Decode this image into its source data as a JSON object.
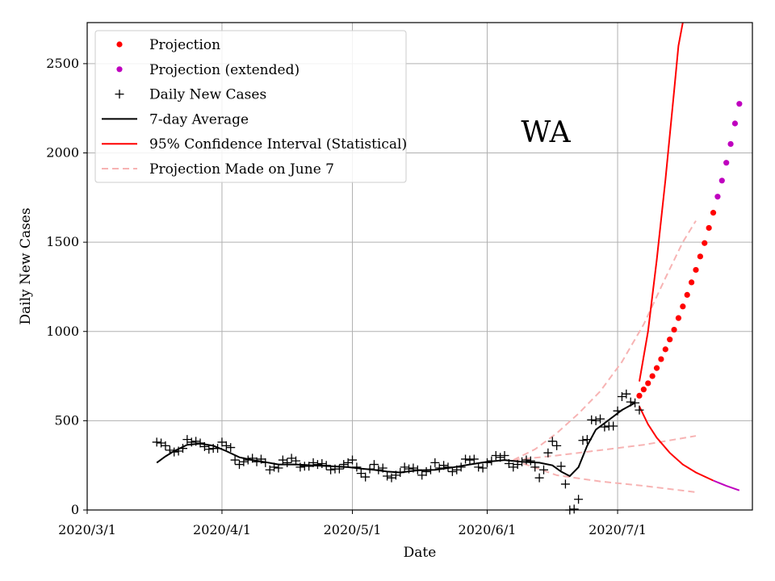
{
  "chart_data": {
    "type": "line",
    "xlabel": "Date",
    "ylabel": "Daily New Cases",
    "x_tick_labels": [
      "2020/3/1",
      "2020/4/1",
      "2020/5/1",
      "2020/6/1",
      "2020/7/1"
    ],
    "y_ticks": [
      0,
      500,
      1000,
      1500,
      2000,
      2500
    ],
    "xlim": [
      "2020-03-01",
      "2020-08-01"
    ],
    "ylim": [
      0,
      2730
    ],
    "grid": true,
    "legend_position": "top-left",
    "annotation": "WA",
    "colors": {
      "projection": "#ff0000",
      "projection_extended": "#bf00bf",
      "daily": "#000000",
      "avg": "#000000",
      "ci": "#ff0000",
      "ci_extended": "#bf00bf",
      "june7": "#f7b3b3",
      "grid": "#b0b0b0"
    },
    "legend": [
      {
        "label": "Projection",
        "marker": "dot",
        "color": "#ff0000"
      },
      {
        "label": "Projection (extended)",
        "marker": "dot",
        "color": "#bf00bf"
      },
      {
        "label": "Daily New Cases",
        "marker": "plus",
        "color": "#000000"
      },
      {
        "label": "7-day Average",
        "marker": "line",
        "color": "#000000"
      },
      {
        "label": "95% Confidence Interval (Statistical)",
        "marker": "line",
        "color": "#ff0000"
      },
      {
        "label": "Projection Made on June 7",
        "marker": "dashed",
        "color": "#f7b3b3"
      }
    ],
    "daily_new_cases": [
      {
        "date": "2020-03-17",
        "value": 380
      },
      {
        "date": "2020-03-18",
        "value": 375
      },
      {
        "date": "2020-03-19",
        "value": 360
      },
      {
        "date": "2020-03-20",
        "value": 335
      },
      {
        "date": "2020-03-21",
        "value": 325
      },
      {
        "date": "2020-03-22",
        "value": 330
      },
      {
        "date": "2020-03-23",
        "value": 345
      },
      {
        "date": "2020-03-24",
        "value": 395
      },
      {
        "date": "2020-03-25",
        "value": 380
      },
      {
        "date": "2020-03-26",
        "value": 385
      },
      {
        "date": "2020-03-27",
        "value": 375
      },
      {
        "date": "2020-03-28",
        "value": 355
      },
      {
        "date": "2020-03-29",
        "value": 340
      },
      {
        "date": "2020-03-30",
        "value": 345
      },
      {
        "date": "2020-03-31",
        "value": 345
      },
      {
        "date": "2020-04-01",
        "value": 380
      },
      {
        "date": "2020-04-02",
        "value": 360
      },
      {
        "date": "2020-04-03",
        "value": 350
      },
      {
        "date": "2020-04-04",
        "value": 280
      },
      {
        "date": "2020-04-05",
        "value": 255
      },
      {
        "date": "2020-04-06",
        "value": 270
      },
      {
        "date": "2020-04-07",
        "value": 280
      },
      {
        "date": "2020-04-08",
        "value": 290
      },
      {
        "date": "2020-04-09",
        "value": 270
      },
      {
        "date": "2020-04-10",
        "value": 285
      },
      {
        "date": "2020-04-11",
        "value": 265
      },
      {
        "date": "2020-04-12",
        "value": 225
      },
      {
        "date": "2020-04-13",
        "value": 240
      },
      {
        "date": "2020-04-14",
        "value": 235
      },
      {
        "date": "2020-04-15",
        "value": 280
      },
      {
        "date": "2020-04-16",
        "value": 265
      },
      {
        "date": "2020-04-17",
        "value": 290
      },
      {
        "date": "2020-04-18",
        "value": 275
      },
      {
        "date": "2020-04-19",
        "value": 240
      },
      {
        "date": "2020-04-20",
        "value": 245
      },
      {
        "date": "2020-04-21",
        "value": 245
      },
      {
        "date": "2020-04-22",
        "value": 265
      },
      {
        "date": "2020-04-23",
        "value": 255
      },
      {
        "date": "2020-04-24",
        "value": 260
      },
      {
        "date": "2020-04-25",
        "value": 250
      },
      {
        "date": "2020-04-26",
        "value": 225
      },
      {
        "date": "2020-04-27",
        "value": 230
      },
      {
        "date": "2020-04-28",
        "value": 230
      },
      {
        "date": "2020-04-29",
        "value": 255
      },
      {
        "date": "2020-04-30",
        "value": 265
      },
      {
        "date": "2020-05-01",
        "value": 280
      },
      {
        "date": "2020-05-02",
        "value": 240
      },
      {
        "date": "2020-05-03",
        "value": 205
      },
      {
        "date": "2020-05-04",
        "value": 185
      },
      {
        "date": "2020-05-05",
        "value": 230
      },
      {
        "date": "2020-05-06",
        "value": 255
      },
      {
        "date": "2020-05-07",
        "value": 225
      },
      {
        "date": "2020-05-08",
        "value": 235
      },
      {
        "date": "2020-05-09",
        "value": 190
      },
      {
        "date": "2020-05-10",
        "value": 180
      },
      {
        "date": "2020-05-11",
        "value": 195
      },
      {
        "date": "2020-05-12",
        "value": 210
      },
      {
        "date": "2020-05-13",
        "value": 240
      },
      {
        "date": "2020-05-14",
        "value": 230
      },
      {
        "date": "2020-05-15",
        "value": 235
      },
      {
        "date": "2020-05-16",
        "value": 225
      },
      {
        "date": "2020-05-17",
        "value": 195
      },
      {
        "date": "2020-05-18",
        "value": 215
      },
      {
        "date": "2020-05-19",
        "value": 225
      },
      {
        "date": "2020-05-20",
        "value": 265
      },
      {
        "date": "2020-05-21",
        "value": 235
      },
      {
        "date": "2020-05-22",
        "value": 250
      },
      {
        "date": "2020-05-23",
        "value": 240
      },
      {
        "date": "2020-05-24",
        "value": 215
      },
      {
        "date": "2020-05-25",
        "value": 225
      },
      {
        "date": "2020-05-26",
        "value": 240
      },
      {
        "date": "2020-05-27",
        "value": 285
      },
      {
        "date": "2020-05-28",
        "value": 280
      },
      {
        "date": "2020-05-29",
        "value": 285
      },
      {
        "date": "2020-05-30",
        "value": 240
      },
      {
        "date": "2020-05-31",
        "value": 235
      },
      {
        "date": "2020-06-01",
        "value": 265
      },
      {
        "date": "2020-06-02",
        "value": 275
      },
      {
        "date": "2020-06-03",
        "value": 305
      },
      {
        "date": "2020-06-04",
        "value": 295
      },
      {
        "date": "2020-06-05",
        "value": 305
      },
      {
        "date": "2020-06-06",
        "value": 260
      },
      {
        "date": "2020-06-07",
        "value": 240
      },
      {
        "date": "2020-06-08",
        "value": 255
      },
      {
        "date": "2020-06-09",
        "value": 270
      },
      {
        "date": "2020-06-10",
        "value": 280
      },
      {
        "date": "2020-06-11",
        "value": 275
      },
      {
        "date": "2020-06-12",
        "value": 240
      },
      {
        "date": "2020-06-13",
        "value": 180
      },
      {
        "date": "2020-06-14",
        "value": 225
      },
      {
        "date": "2020-06-15",
        "value": 320
      },
      {
        "date": "2020-06-16",
        "value": 385
      },
      {
        "date": "2020-06-17",
        "value": 360
      },
      {
        "date": "2020-06-18",
        "value": 245
      },
      {
        "date": "2020-06-19",
        "value": 145
      },
      {
        "date": "2020-06-20",
        "value": 0
      },
      {
        "date": "2020-06-21",
        "value": 5
      },
      {
        "date": "2020-06-22",
        "value": 60
      },
      {
        "date": "2020-06-23",
        "value": 390
      },
      {
        "date": "2020-06-24",
        "value": 395
      },
      {
        "date": "2020-06-25",
        "value": 505
      },
      {
        "date": "2020-06-26",
        "value": 500
      },
      {
        "date": "2020-06-27",
        "value": 510
      },
      {
        "date": "2020-06-28",
        "value": 465
      },
      {
        "date": "2020-06-29",
        "value": 470
      },
      {
        "date": "2020-06-30",
        "value": 470
      },
      {
        "date": "2020-07-01",
        "value": 555
      },
      {
        "date": "2020-07-02",
        "value": 635
      },
      {
        "date": "2020-07-03",
        "value": 650
      },
      {
        "date": "2020-07-04",
        "value": 605
      },
      {
        "date": "2020-07-05",
        "value": 600
      },
      {
        "date": "2020-07-06",
        "value": 560
      }
    ],
    "seven_day_average": [
      {
        "date": "2020-03-17",
        "value": 265
      },
      {
        "date": "2020-03-19",
        "value": 300
      },
      {
        "date": "2020-03-21",
        "value": 330
      },
      {
        "date": "2020-03-24",
        "value": 365
      },
      {
        "date": "2020-03-27",
        "value": 372
      },
      {
        "date": "2020-03-30",
        "value": 360
      },
      {
        "date": "2020-04-02",
        "value": 330
      },
      {
        "date": "2020-04-05",
        "value": 295
      },
      {
        "date": "2020-04-08",
        "value": 280
      },
      {
        "date": "2020-04-11",
        "value": 268
      },
      {
        "date": "2020-04-14",
        "value": 255
      },
      {
        "date": "2020-04-18",
        "value": 255
      },
      {
        "date": "2020-04-22",
        "value": 250
      },
      {
        "date": "2020-04-26",
        "value": 245
      },
      {
        "date": "2020-04-30",
        "value": 240
      },
      {
        "date": "2020-05-03",
        "value": 232
      },
      {
        "date": "2020-05-06",
        "value": 225
      },
      {
        "date": "2020-05-09",
        "value": 215
      },
      {
        "date": "2020-05-12",
        "value": 210
      },
      {
        "date": "2020-05-16",
        "value": 222
      },
      {
        "date": "2020-05-20",
        "value": 225
      },
      {
        "date": "2020-05-24",
        "value": 238
      },
      {
        "date": "2020-05-28",
        "value": 255
      },
      {
        "date": "2020-06-01",
        "value": 270
      },
      {
        "date": "2020-06-05",
        "value": 280
      },
      {
        "date": "2020-06-09",
        "value": 270
      },
      {
        "date": "2020-06-13",
        "value": 265
      },
      {
        "date": "2020-06-16",
        "value": 250
      },
      {
        "date": "2020-06-18",
        "value": 215
      },
      {
        "date": "2020-06-20",
        "value": 190
      },
      {
        "date": "2020-06-22",
        "value": 240
      },
      {
        "date": "2020-06-24",
        "value": 360
      },
      {
        "date": "2020-06-26",
        "value": 450
      },
      {
        "date": "2020-06-29",
        "value": 505
      },
      {
        "date": "2020-07-02",
        "value": 560
      },
      {
        "date": "2020-07-05",
        "value": 600
      }
    ],
    "projection": [
      {
        "date": "2020-07-06",
        "value": 640
      },
      {
        "date": "2020-07-07",
        "value": 675
      },
      {
        "date": "2020-07-08",
        "value": 710
      },
      {
        "date": "2020-07-09",
        "value": 750
      },
      {
        "date": "2020-07-10",
        "value": 795
      },
      {
        "date": "2020-07-11",
        "value": 845
      },
      {
        "date": "2020-07-12",
        "value": 900
      },
      {
        "date": "2020-07-13",
        "value": 955
      },
      {
        "date": "2020-07-14",
        "value": 1010
      },
      {
        "date": "2020-07-15",
        "value": 1075
      },
      {
        "date": "2020-07-16",
        "value": 1140
      },
      {
        "date": "2020-07-17",
        "value": 1205
      },
      {
        "date": "2020-07-18",
        "value": 1275
      },
      {
        "date": "2020-07-19",
        "value": 1345
      },
      {
        "date": "2020-07-20",
        "value": 1420
      },
      {
        "date": "2020-07-21",
        "value": 1495
      },
      {
        "date": "2020-07-22",
        "value": 1580
      },
      {
        "date": "2020-07-23",
        "value": 1665
      }
    ],
    "projection_extended": [
      {
        "date": "2020-07-24",
        "value": 1755
      },
      {
        "date": "2020-07-25",
        "value": 1845
      },
      {
        "date": "2020-07-26",
        "value": 1945
      },
      {
        "date": "2020-07-27",
        "value": 2050
      },
      {
        "date": "2020-07-28",
        "value": 2165
      },
      {
        "date": "2020-07-29",
        "value": 2275
      }
    ],
    "ci_upper": [
      {
        "date": "2020-07-06",
        "value": 720
      },
      {
        "date": "2020-07-08",
        "value": 1000
      },
      {
        "date": "2020-07-10",
        "value": 1400
      },
      {
        "date": "2020-07-12",
        "value": 1850
      },
      {
        "date": "2020-07-14",
        "value": 2350
      },
      {
        "date": "2020-07-15",
        "value": 2600
      },
      {
        "date": "2020-07-16",
        "value": 2730
      }
    ],
    "ci_lower": [
      {
        "date": "2020-07-06",
        "value": 580
      },
      {
        "date": "2020-07-08",
        "value": 480
      },
      {
        "date": "2020-07-10",
        "value": 405
      },
      {
        "date": "2020-07-13",
        "value": 320
      },
      {
        "date": "2020-07-16",
        "value": 255
      },
      {
        "date": "2020-07-19",
        "value": 210
      },
      {
        "date": "2020-07-23",
        "value": 165
      }
    ],
    "ci_lower_extended": [
      {
        "date": "2020-07-23",
        "value": 165
      },
      {
        "date": "2020-07-26",
        "value": 135
      },
      {
        "date": "2020-07-29",
        "value": 110
      }
    ],
    "june7_projection": {
      "upper": [
        {
          "date": "2020-06-07",
          "value": 280
        },
        {
          "date": "2020-06-12",
          "value": 340
        },
        {
          "date": "2020-06-17",
          "value": 430
        },
        {
          "date": "2020-06-22",
          "value": 540
        },
        {
          "date": "2020-06-27",
          "value": 665
        },
        {
          "date": "2020-07-02",
          "value": 830
        },
        {
          "date": "2020-07-07",
          "value": 1040
        },
        {
          "date": "2020-07-12",
          "value": 1300
        },
        {
          "date": "2020-07-16",
          "value": 1500
        },
        {
          "date": "2020-07-19",
          "value": 1620
        }
      ],
      "middle": [
        {
          "date": "2020-06-07",
          "value": 280
        },
        {
          "date": "2020-06-17",
          "value": 305
        },
        {
          "date": "2020-06-27",
          "value": 335
        },
        {
          "date": "2020-07-07",
          "value": 365
        },
        {
          "date": "2020-07-19",
          "value": 415
        }
      ],
      "lower": [
        {
          "date": "2020-06-07",
          "value": 280
        },
        {
          "date": "2020-06-17",
          "value": 195
        },
        {
          "date": "2020-06-27",
          "value": 160
        },
        {
          "date": "2020-07-07",
          "value": 135
        },
        {
          "date": "2020-07-19",
          "value": 100
        }
      ]
    }
  }
}
